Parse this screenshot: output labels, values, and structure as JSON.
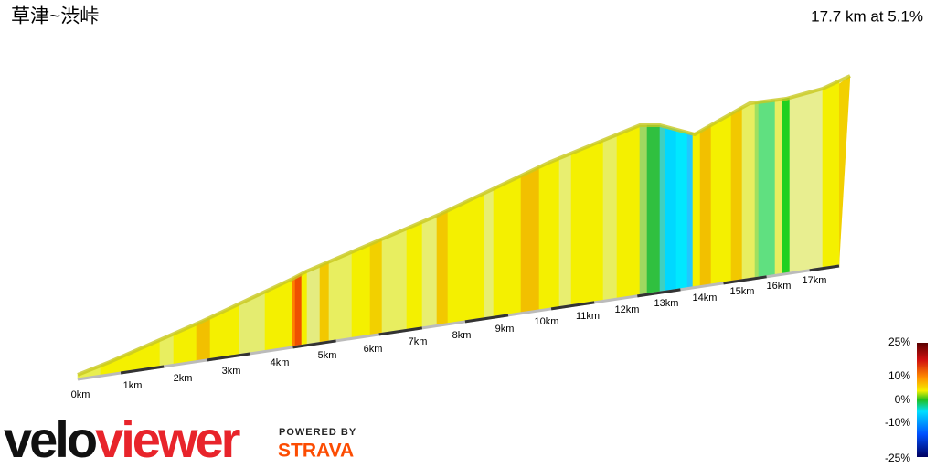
{
  "header": {
    "title": "草津~渋峠",
    "summary": "17.7 km at 5.1%"
  },
  "distance_labels": [
    "0km",
    "1km",
    "2km",
    "3km",
    "4km",
    "5km",
    "6km",
    "7km",
    "8km",
    "9km",
    "10km",
    "11km",
    "12km",
    "13km",
    "14km",
    "15km",
    "16km",
    "17km"
  ],
  "legend": {
    "labels": [
      "25%",
      "10%",
      "0%",
      "-10%",
      "-25%"
    ]
  },
  "branding": {
    "logo_part1": "velo",
    "logo_part2": "viewer",
    "powered_by": "POWERED BY",
    "partner": "STRAVA"
  }
}
